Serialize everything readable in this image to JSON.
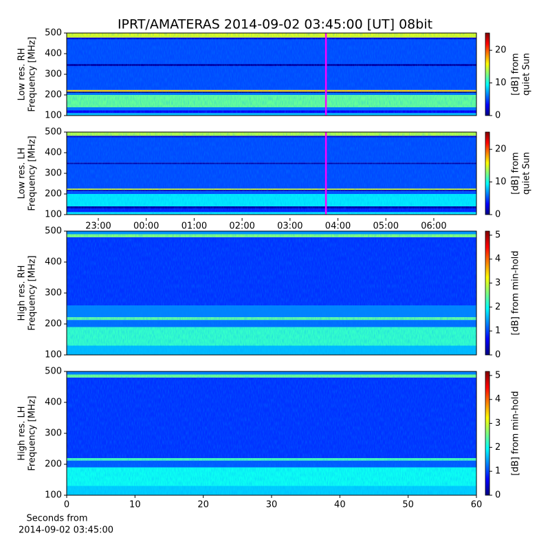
{
  "chart_data": [
    {
      "type": "heatmap",
      "title": "IPRT/AMATERAS 2014-09-02 03:45:00 [UT]   08bit",
      "ylabel": [
        "Low res. RH",
        "Frequency [MHz]"
      ],
      "ylim": [
        100,
        500
      ],
      "yticks": [
        100,
        200,
        300,
        400,
        500
      ],
      "xlim": [
        22.34,
        30.89
      ],
      "marker_x": 27.75,
      "marker_color": "#ff00ff",
      "clabel": [
        "[dB] from",
        "quiet Sun"
      ],
      "clim": [
        0,
        25.3
      ],
      "cticks": [
        0,
        10,
        20
      ],
      "bands": [
        {
          "from": 100,
          "to": 112,
          "level": 8
        },
        {
          "from": 112,
          "to": 125,
          "level": 3
        },
        {
          "from": 125,
          "to": 140,
          "level": 6
        },
        {
          "from": 140,
          "to": 200,
          "level": 12
        },
        {
          "from": 200,
          "to": 210,
          "level": 6
        },
        {
          "from": 210,
          "to": 216,
          "level": 0
        },
        {
          "from": 216,
          "to": 224,
          "level": 17
        },
        {
          "from": 224,
          "to": 340,
          "level": 5
        },
        {
          "from": 340,
          "to": 350,
          "level": 1
        },
        {
          "from": 350,
          "to": 470,
          "level": 5
        },
        {
          "from": 470,
          "to": 478,
          "level": 2
        },
        {
          "from": 478,
          "to": 500,
          "level": 15
        }
      ]
    },
    {
      "type": "heatmap",
      "ylabel": [
        "Low res. LH",
        "Frequency [MHz]"
      ],
      "ylim": [
        100,
        500
      ],
      "yticks": [
        100,
        200,
        300,
        400,
        500
      ],
      "xlim": [
        22.34,
        30.89
      ],
      "marker_x": 27.75,
      "marker_color": "#ff00ff",
      "xticks": [
        {
          "value": 23,
          "label": "23:00"
        },
        {
          "value": 24,
          "label": "00:00"
        },
        {
          "value": 25,
          "label": "01:00"
        },
        {
          "value": 26,
          "label": "02:00"
        },
        {
          "value": 27,
          "label": "03:00"
        },
        {
          "value": 28,
          "label": "04:00"
        },
        {
          "value": 29,
          "label": "05:00"
        },
        {
          "value": 30,
          "label": "06:00"
        }
      ],
      "clabel": [
        "[dB] from",
        "quiet Sun"
      ],
      "clim": [
        0,
        25.3
      ],
      "cticks": [
        0,
        10,
        20
      ],
      "bands": [
        {
          "from": 100,
          "to": 112,
          "level": 9
        },
        {
          "from": 112,
          "to": 130,
          "level": 4
        },
        {
          "from": 130,
          "to": 140,
          "level": 1
        },
        {
          "from": 140,
          "to": 200,
          "level": 9
        },
        {
          "from": 200,
          "to": 214,
          "level": 5
        },
        {
          "from": 214,
          "to": 220,
          "level": 1
        },
        {
          "from": 220,
          "to": 226,
          "level": 15
        },
        {
          "from": 226,
          "to": 345,
          "level": 5
        },
        {
          "from": 345,
          "to": 352,
          "level": 1
        },
        {
          "from": 352,
          "to": 475,
          "level": 5
        },
        {
          "from": 475,
          "to": 482,
          "level": 2
        },
        {
          "from": 482,
          "to": 500,
          "level": 14
        }
      ]
    },
    {
      "type": "heatmap",
      "ylabel": [
        "High res. RH",
        "Frequency [MHz]"
      ],
      "ylim": [
        100,
        500
      ],
      "yticks": [
        100,
        200,
        300,
        400,
        500
      ],
      "xlim": [
        0,
        60
      ],
      "clabel": [
        "[dB] from min-hold"
      ],
      "clim": [
        0,
        5.17
      ],
      "cticks": [
        0,
        1,
        2,
        3,
        4,
        5
      ],
      "bands": [
        {
          "from": 100,
          "to": 130,
          "level": 1.6
        },
        {
          "from": 130,
          "to": 190,
          "level": 2.2
        },
        {
          "from": 190,
          "to": 213,
          "level": 1.2
        },
        {
          "from": 213,
          "to": 222,
          "level": 2.4
        },
        {
          "from": 222,
          "to": 260,
          "level": 1.3
        },
        {
          "from": 260,
          "to": 480,
          "level": 0.9
        },
        {
          "from": 480,
          "to": 490,
          "level": 2.6
        },
        {
          "from": 490,
          "to": 500,
          "level": 1.4
        }
      ]
    },
    {
      "type": "heatmap",
      "ylabel": [
        "High res. LH",
        "Frequency [MHz]"
      ],
      "ylim": [
        100,
        500
      ],
      "yticks": [
        100,
        200,
        300,
        400,
        500
      ],
      "xlim": [
        0,
        60
      ],
      "xticks": [
        0,
        10,
        20,
        30,
        40,
        50,
        60
      ],
      "xlabel": [
        "Seconds from",
        "2014-09-02 03:45:00"
      ],
      "clabel": [
        "[dB] from min-hold"
      ],
      "clim": [
        0,
        5.17
      ],
      "cticks": [
        0,
        1,
        2,
        3,
        4,
        5
      ],
      "bands": [
        {
          "from": 100,
          "to": 130,
          "level": 1.7
        },
        {
          "from": 130,
          "to": 190,
          "level": 2
        },
        {
          "from": 190,
          "to": 212,
          "level": 1.1
        },
        {
          "from": 212,
          "to": 220,
          "level": 2.3
        },
        {
          "from": 220,
          "to": 480,
          "level": 0.9
        },
        {
          "from": 480,
          "to": 490,
          "level": 2.5
        },
        {
          "from": 490,
          "to": 500,
          "level": 1.3
        }
      ]
    }
  ]
}
